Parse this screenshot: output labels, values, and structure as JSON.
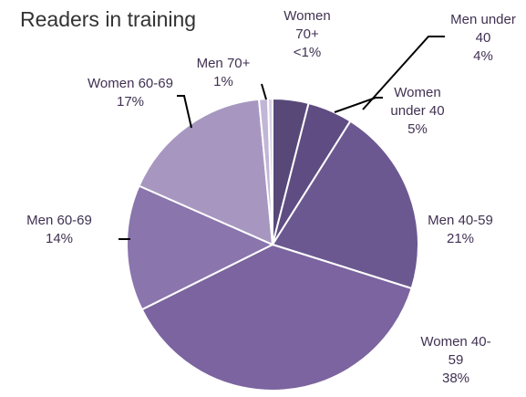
{
  "chart_data": {
    "type": "pie",
    "title": "Readers in training",
    "categories": [
      "Men under 40",
      "Women under 40",
      "Men 40-59",
      "Women 40-59",
      "Men 60-69",
      "Women 60-69",
      "Men 70+",
      "Women 70+"
    ],
    "values": [
      4,
      5,
      21,
      38,
      14,
      17,
      1,
      0.5
    ],
    "value_labels": [
      "4%",
      "5%",
      "21%",
      "38%",
      "14%",
      "17%",
      "1%",
      "<1%"
    ],
    "colors": [
      "#584878",
      "#5e4c82",
      "#6b5890",
      "#7b649f",
      "#8a75ad",
      "#a797c0",
      "#c2b6d6",
      "#d8cfe5"
    ]
  }
}
